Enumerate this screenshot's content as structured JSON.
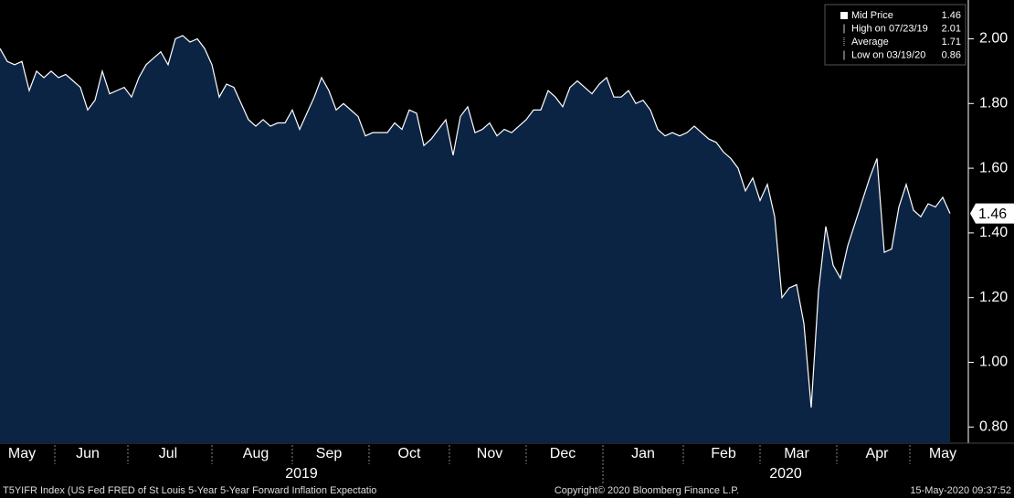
{
  "chart_data": {
    "type": "area",
    "categories": [
      null,
      null,
      null,
      "May",
      null,
      null,
      null,
      null,
      null,
      null,
      null,
      null,
      "Jun",
      null,
      null,
      null,
      null,
      null,
      null,
      null,
      null,
      null,
      null,
      "Jul",
      null,
      null,
      null,
      null,
      null,
      null,
      null,
      null,
      null,
      null,
      null,
      "Aug",
      null,
      null,
      null,
      null,
      null,
      null,
      null,
      null,
      null,
      "Sep",
      null,
      null,
      null,
      null,
      null,
      null,
      null,
      null,
      null,
      null,
      "Oct",
      null,
      null,
      null,
      null,
      null,
      null,
      null,
      null,
      null,
      null,
      "Nov",
      null,
      null,
      null,
      null,
      null,
      null,
      null,
      null,
      null,
      "Dec",
      null,
      null,
      null,
      null,
      null,
      null,
      null,
      null,
      null,
      null,
      "Jan",
      null,
      null,
      null,
      null,
      null,
      null,
      null,
      null,
      null,
      null,
      "Feb",
      null,
      null,
      null,
      null,
      null,
      null,
      null,
      null,
      null,
      "Mar",
      null,
      null,
      null,
      null,
      null,
      null,
      null,
      null,
      null,
      null,
      "Apr",
      null,
      null,
      null,
      null,
      null,
      null,
      null,
      null,
      "May",
      null
    ],
    "values": [
      1.97,
      1.93,
      1.92,
      1.93,
      1.84,
      1.9,
      1.88,
      1.9,
      1.88,
      1.89,
      1.87,
      1.85,
      1.78,
      1.81,
      1.9,
      1.83,
      1.84,
      1.85,
      1.82,
      1.88,
      1.92,
      1.94,
      1.96,
      1.92,
      2.0,
      2.01,
      1.99,
      2.0,
      1.97,
      1.92,
      1.82,
      1.86,
      1.85,
      1.8,
      1.75,
      1.73,
      1.75,
      1.73,
      1.74,
      1.74,
      1.78,
      1.72,
      1.77,
      1.82,
      1.88,
      1.84,
      1.78,
      1.8,
      1.78,
      1.76,
      1.7,
      1.71,
      1.71,
      1.71,
      1.74,
      1.72,
      1.78,
      1.77,
      1.67,
      1.69,
      1.72,
      1.75,
      1.64,
      1.76,
      1.79,
      1.71,
      1.72,
      1.74,
      1.7,
      1.72,
      1.71,
      1.73,
      1.75,
      1.78,
      1.78,
      1.84,
      1.82,
      1.79,
      1.85,
      1.87,
      1.85,
      1.83,
      1.86,
      1.88,
      1.82,
      1.82,
      1.84,
      1.8,
      1.81,
      1.78,
      1.72,
      1.7,
      1.71,
      1.7,
      1.71,
      1.73,
      1.71,
      1.69,
      1.68,
      1.65,
      1.63,
      1.6,
      1.53,
      1.57,
      1.5,
      1.55,
      1.45,
      1.2,
      1.23,
      1.24,
      1.12,
      0.86,
      1.22,
      1.42,
      1.3,
      1.26,
      1.36,
      1.43,
      1.5,
      1.57,
      1.63,
      1.34,
      1.35,
      1.48,
      1.55,
      1.47,
      1.45,
      1.49,
      1.48,
      1.51,
      1.46
    ],
    "color": "#0c2444",
    "line_color": "#ffffff",
    "ylim": [
      0.75,
      2.12
    ],
    "yticks": [
      {
        "value": 0.8,
        "label": "0.80"
      },
      {
        "value": 1.0,
        "label": "1.00"
      },
      {
        "value": 1.2,
        "label": "1.20"
      },
      {
        "value": 1.4,
        "label": "1.40"
      },
      {
        "value": 1.6,
        "label": "1.60"
      },
      {
        "value": 1.8,
        "label": "1.80"
      },
      {
        "value": 2.0,
        "label": "2.00"
      }
    ],
    "years": [
      "2019",
      "2020"
    ],
    "legend": [
      {
        "label": "Mid Price",
        "value": 1.46
      },
      {
        "label": "High on 07/23/19",
        "value": 2.01
      },
      {
        "label": "Average",
        "value": 1.71
      },
      {
        "label": "Low on 03/19/20",
        "value": 0.86
      }
    ],
    "footer": {
      "left": "T5YIFR Index (US Fed FRED of St Louis 5-Year 5-Year Forward Inflation Expectatio",
      "center": "Copyright© 2020 Bloomberg Finance L.P.",
      "right": "15-May-2020 09:37:52"
    }
  }
}
